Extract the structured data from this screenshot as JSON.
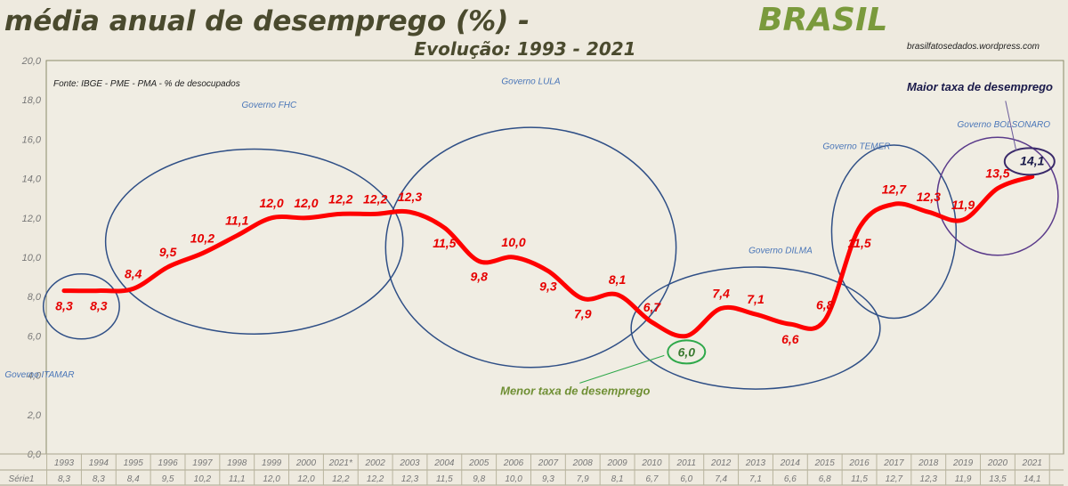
{
  "page": {
    "title": "Taxa média anual de desemprego (%) -",
    "title_accent": "BRASIL",
    "subtitle": "Evolução: 1993 - 2021",
    "source_site": "brasilfatosedados.wordpress.com",
    "source_note": "Fonte:  IBGE - PME - PMA -  %  de desocupados"
  },
  "colors": {
    "background": "#eeeadf",
    "title": "#4a4a2e",
    "accent": "#7a9a3c",
    "line": "#ff0000",
    "data_label": "#e60000",
    "ellipse": "#2f4f86",
    "gov_label": "#4a76b8",
    "min_marker": "#2ea84a",
    "max_marker": "#3a2a6a",
    "grid": "#c8c4b2"
  },
  "chart_data": {
    "type": "line",
    "categories": [
      "1993",
      "1994",
      "1995",
      "1996",
      "1997",
      "1998",
      "1999",
      "2000",
      "2021*",
      "2002",
      "2003",
      "2004",
      "2005",
      "2006",
      "2007",
      "2008",
      "2009",
      "2010",
      "2011",
      "2012",
      "2013",
      "2014",
      "2015",
      "2016",
      "2017",
      "2018",
      "2019",
      "2020",
      "2021"
    ],
    "series": [
      {
        "name": "Série1",
        "values": [
          8.3,
          8.3,
          8.4,
          9.5,
          10.2,
          11.1,
          12.0,
          12.0,
          12.2,
          12.2,
          12.3,
          11.5,
          9.8,
          10.0,
          9.3,
          7.9,
          8.1,
          6.7,
          6.0,
          7.4,
          7.1,
          6.6,
          6.8,
          11.5,
          12.7,
          12.3,
          11.9,
          13.5,
          14.1
        ]
      }
    ],
    "data_labels": [
      "8,3",
      "8,3",
      "8,4",
      "9,5",
      "10,2",
      "11,1",
      "12,0",
      "12,0",
      "12,2",
      "12,2",
      "12,3",
      "11,5",
      "9,8",
      "10,0",
      "9,3",
      "7,9",
      "8,1",
      "6,7",
      "6,0",
      "7,4",
      "7,1",
      "6,6",
      "6,8",
      "11,5",
      "12,7",
      "12,3",
      "11,9",
      "13,5",
      "14,1"
    ],
    "table_row_label": "Série1",
    "ylim": [
      0,
      20
    ],
    "y_ticks": [
      "0,0",
      "2,0",
      "4,0",
      "6,0",
      "8,0",
      "10,0",
      "12,0",
      "14,0",
      "16,0",
      "18,0",
      "20,0"
    ],
    "grid": false,
    "annotations": {
      "governments": [
        {
          "label": "Governo ITAMAR",
          "years": [
            "1993",
            "1994"
          ]
        },
        {
          "label": "Governo FHC",
          "years": [
            "1995",
            "2002"
          ]
        },
        {
          "label": "Governo LULA",
          "years": [
            "2003",
            "2010"
          ]
        },
        {
          "label": "Governo DILMA",
          "years": [
            "2011",
            "2015"
          ]
        },
        {
          "label": "Governo TEMER",
          "years": [
            "2016",
            "2018"
          ]
        },
        {
          "label": "Governo BOLSONARO",
          "years": [
            "2019",
            "2021"
          ]
        }
      ],
      "min_label": "Menor taxa de desemprego",
      "max_label": "Maior taxa  de desemprego"
    }
  }
}
